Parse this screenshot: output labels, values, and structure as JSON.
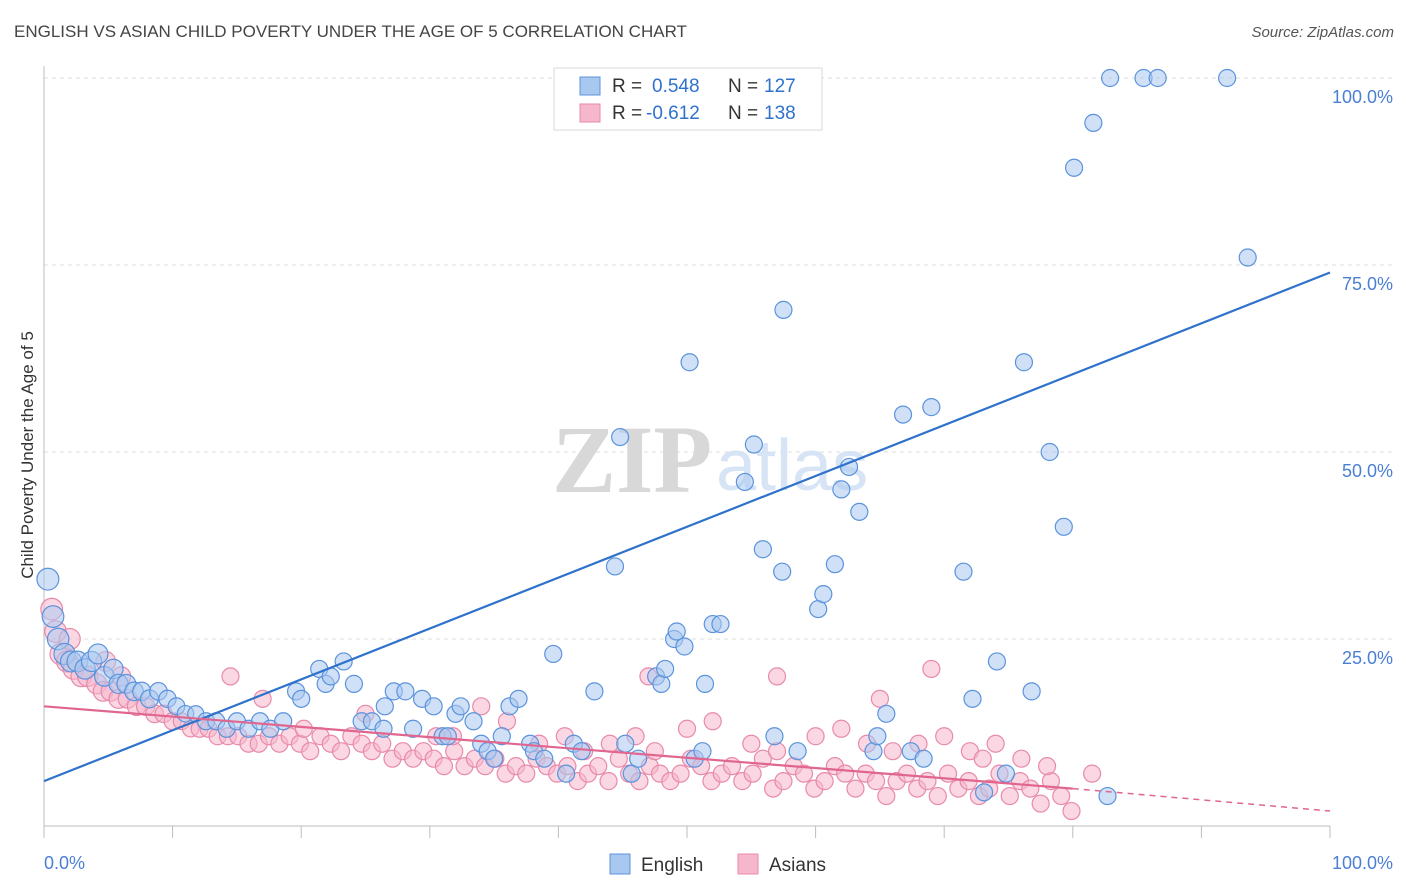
{
  "header": {
    "title": "ENGLISH VS ASIAN CHILD POVERTY UNDER THE AGE OF 5 CORRELATION CHART",
    "source": "Source: ZipAtlas.com"
  },
  "watermark": {
    "zip": "ZIP",
    "atlas": "atlas"
  },
  "stats": {
    "english": {
      "r_label": "R =",
      "r": "0.548",
      "n_label": "N =",
      "n": "127"
    },
    "asians": {
      "r_label": "R =",
      "r": "-0.612",
      "n_label": "N =",
      "n": "138"
    }
  },
  "legend": {
    "english": "English",
    "asians": "Asians"
  },
  "chart_data": {
    "type": "scatter",
    "title": "ENGLISH VS ASIAN CHILD POVERTY UNDER THE AGE OF 5 CORRELATION CHART",
    "ylabel": "Child Poverty Under the Age of 5",
    "xlabel": "",
    "xlim": [
      0,
      100
    ],
    "ylim": [
      0,
      100
    ],
    "x_tick_labels": [
      "0.0%",
      "100.0%"
    ],
    "y_tick_labels": [
      "25.0%",
      "50.0%",
      "75.0%",
      "100.0%"
    ],
    "y_ticks": [
      25,
      50,
      75,
      100
    ],
    "grid": true,
    "legend_position": "bottom",
    "colors": {
      "english_fill": "#a9c8f0",
      "english_stroke": "#5b93dc",
      "english_line": "#2f72cc",
      "asians_fill": "#f6b7cc",
      "asians_stroke": "#e88aa9",
      "asians_line": "#e0668f",
      "tick": "#4a7fd4"
    },
    "series": [
      {
        "name": "English",
        "r": 0.548,
        "n": 127,
        "trend": {
          "x": [
            0,
            100
          ],
          "y": [
            6,
            74
          ]
        },
        "points": [
          [
            0.3,
            33
          ],
          [
            0.7,
            28
          ],
          [
            1.1,
            25
          ],
          [
            1.6,
            23
          ],
          [
            2.1,
            22
          ],
          [
            2.6,
            22
          ],
          [
            3.2,
            21
          ],
          [
            3.7,
            22
          ],
          [
            4.2,
            23
          ],
          [
            4.7,
            20
          ],
          [
            5.4,
            21
          ],
          [
            5.8,
            19
          ],
          [
            6.4,
            19
          ],
          [
            7.0,
            18
          ],
          [
            7.6,
            18
          ],
          [
            8.2,
            17
          ],
          [
            8.9,
            18
          ],
          [
            9.6,
            17
          ],
          [
            10.3,
            16
          ],
          [
            11.0,
            15
          ],
          [
            11.8,
            15
          ],
          [
            12.6,
            14
          ],
          [
            13.4,
            14
          ],
          [
            14.2,
            13
          ],
          [
            15.0,
            14
          ],
          [
            15.9,
            13
          ],
          [
            16.8,
            14
          ],
          [
            17.6,
            13
          ],
          [
            18.6,
            14
          ],
          [
            19.6,
            18
          ],
          [
            20.0,
            17
          ],
          [
            21.4,
            21
          ],
          [
            21.9,
            19
          ],
          [
            22.3,
            20
          ],
          [
            23.3,
            22
          ],
          [
            24.1,
            19
          ],
          [
            24.7,
            14
          ],
          [
            25.5,
            14
          ],
          [
            26.4,
            13
          ],
          [
            26.5,
            16
          ],
          [
            27.2,
            18
          ],
          [
            28.1,
            18
          ],
          [
            28.7,
            13
          ],
          [
            29.4,
            17
          ],
          [
            30.3,
            16
          ],
          [
            31.0,
            12
          ],
          [
            31.4,
            12
          ],
          [
            32.0,
            15
          ],
          [
            32.4,
            16
          ],
          [
            33.4,
            14
          ],
          [
            34.0,
            11
          ],
          [
            34.5,
            10
          ],
          [
            35.0,
            9
          ],
          [
            35.6,
            12
          ],
          [
            36.2,
            16
          ],
          [
            36.9,
            17
          ],
          [
            37.8,
            11
          ],
          [
            38.1,
            10
          ],
          [
            38.9,
            9
          ],
          [
            39.6,
            23
          ],
          [
            40.6,
            7
          ],
          [
            41.2,
            11
          ],
          [
            41.8,
            10
          ],
          [
            42.8,
            18
          ],
          [
            44.4,
            34.7
          ],
          [
            44.8,
            52
          ],
          [
            45.2,
            11
          ],
          [
            45.7,
            7
          ],
          [
            46.2,
            9
          ],
          [
            47.6,
            20
          ],
          [
            48.0,
            19
          ],
          [
            48.3,
            21
          ],
          [
            49.0,
            25
          ],
          [
            49.2,
            26
          ],
          [
            49.8,
            24
          ],
          [
            50.2,
            62
          ],
          [
            50.6,
            9
          ],
          [
            51.2,
            10
          ],
          [
            51.4,
            19
          ],
          [
            52.0,
            27
          ],
          [
            52.6,
            27
          ],
          [
            54.5,
            46
          ],
          [
            55.2,
            51
          ],
          [
            55.9,
            37
          ],
          [
            56.8,
            12
          ],
          [
            57.4,
            34
          ],
          [
            57.5,
            69
          ],
          [
            58.6,
            10
          ],
          [
            60.2,
            29
          ],
          [
            60.6,
            31
          ],
          [
            61.5,
            35
          ],
          [
            62.0,
            45
          ],
          [
            62.6,
            48
          ],
          [
            63.4,
            42
          ],
          [
            64.5,
            10
          ],
          [
            64.8,
            12
          ],
          [
            65.5,
            15
          ],
          [
            66.8,
            55
          ],
          [
            67.4,
            10
          ],
          [
            68.4,
            9
          ],
          [
            69.0,
            56
          ],
          [
            71.5,
            34
          ],
          [
            72.2,
            17
          ],
          [
            73.1,
            4.5
          ],
          [
            74.1,
            22
          ],
          [
            74.8,
            7
          ],
          [
            76.2,
            62
          ],
          [
            76.8,
            18
          ],
          [
            78.2,
            50
          ],
          [
            79.3,
            40
          ],
          [
            80.1,
            88
          ],
          [
            81.6,
            94
          ],
          [
            82.7,
            4
          ],
          [
            82.9,
            100
          ],
          [
            85.5,
            100
          ],
          [
            86.6,
            100
          ],
          [
            92.0,
            100
          ],
          [
            93.6,
            76
          ]
        ]
      },
      {
        "name": "Asians",
        "r": -0.612,
        "n": 138,
        "trend": {
          "x": [
            0,
            80
          ],
          "y": [
            16,
            5
          ]
        },
        "trend_dashed": {
          "x": [
            80,
            100
          ],
          "y": [
            5,
            2
          ]
        },
        "points": [
          [
            0.6,
            29
          ],
          [
            0.9,
            26
          ],
          [
            1.3,
            23
          ],
          [
            1.8,
            22
          ],
          [
            2.3,
            21
          ],
          [
            2.9,
            20
          ],
          [
            3.4,
            20
          ],
          [
            4.1,
            19
          ],
          [
            4.6,
            18
          ],
          [
            5.2,
            18
          ],
          [
            5.8,
            17
          ],
          [
            6.5,
            17
          ],
          [
            7.2,
            16
          ],
          [
            7.9,
            16
          ],
          [
            8.6,
            15
          ],
          [
            9.3,
            15
          ],
          [
            10.0,
            14
          ],
          [
            10.7,
            14
          ],
          [
            11.4,
            13
          ],
          [
            12.1,
            13
          ],
          [
            12.8,
            13
          ],
          [
            13.5,
            12
          ],
          [
            14.3,
            12
          ],
          [
            15.1,
            12
          ],
          [
            15.9,
            11
          ],
          [
            16.7,
            11
          ],
          [
            17.5,
            12
          ],
          [
            18.3,
            11
          ],
          [
            19.1,
            12
          ],
          [
            19.9,
            11
          ],
          [
            20.7,
            10
          ],
          [
            21.5,
            12
          ],
          [
            22.3,
            11
          ],
          [
            23.1,
            10
          ],
          [
            23.9,
            12
          ],
          [
            24.7,
            11
          ],
          [
            25.5,
            10
          ],
          [
            26.3,
            11
          ],
          [
            27.1,
            9
          ],
          [
            27.9,
            10
          ],
          [
            28.7,
            9
          ],
          [
            29.5,
            10
          ],
          [
            30.3,
            9
          ],
          [
            31.1,
            8
          ],
          [
            31.9,
            10
          ],
          [
            32.7,
            8
          ],
          [
            33.5,
            9
          ],
          [
            34.3,
            8
          ],
          [
            35.1,
            9
          ],
          [
            35.9,
            7
          ],
          [
            36.7,
            8
          ],
          [
            37.5,
            7
          ],
          [
            38.3,
            9
          ],
          [
            39.1,
            8
          ],
          [
            39.9,
            7
          ],
          [
            40.7,
            8
          ],
          [
            41.5,
            6
          ],
          [
            42.3,
            7
          ],
          [
            43.1,
            8
          ],
          [
            43.9,
            6
          ],
          [
            44.7,
            9
          ],
          [
            45.5,
            7
          ],
          [
            46.3,
            6
          ],
          [
            47.1,
            8
          ],
          [
            47.9,
            7
          ],
          [
            48.7,
            6
          ],
          [
            49.5,
            7
          ],
          [
            50.3,
            9
          ],
          [
            51.1,
            8
          ],
          [
            51.9,
            6
          ],
          [
            52.7,
            7
          ],
          [
            53.5,
            8
          ],
          [
            54.3,
            6
          ],
          [
            55.1,
            7
          ],
          [
            55.9,
            9
          ],
          [
            56.7,
            5
          ],
          [
            57.5,
            6
          ],
          [
            58.3,
            8
          ],
          [
            59.1,
            7
          ],
          [
            59.9,
            5
          ],
          [
            60.7,
            6
          ],
          [
            61.5,
            8
          ],
          [
            62.3,
            7
          ],
          [
            63.1,
            5
          ],
          [
            63.9,
            7
          ],
          [
            64.7,
            6
          ],
          [
            65.5,
            4
          ],
          [
            66.3,
            6
          ],
          [
            67.1,
            7
          ],
          [
            67.9,
            5
          ],
          [
            68.7,
            6
          ],
          [
            69.5,
            4
          ],
          [
            70.3,
            7
          ],
          [
            71.1,
            5
          ],
          [
            71.9,
            6
          ],
          [
            72.7,
            4
          ],
          [
            73.5,
            5
          ],
          [
            74.3,
            7
          ],
          [
            75.1,
            4
          ],
          [
            75.9,
            6
          ],
          [
            76.7,
            5
          ],
          [
            77.5,
            3
          ],
          [
            78.3,
            6
          ],
          [
            79.1,
            4
          ],
          [
            79.9,
            2
          ],
          [
            2.0,
            25
          ],
          [
            4.8,
            22
          ],
          [
            6.0,
            20
          ],
          [
            14.5,
            20
          ],
          [
            20.2,
            13
          ],
          [
            25.0,
            15
          ],
          [
            30.5,
            12
          ],
          [
            31.8,
            12
          ],
          [
            36.0,
            14
          ],
          [
            38.5,
            11
          ],
          [
            40.5,
            12
          ],
          [
            42.0,
            10
          ],
          [
            44.0,
            11
          ],
          [
            46.0,
            12
          ],
          [
            47.5,
            10
          ],
          [
            50.0,
            13
          ],
          [
            52.0,
            14
          ],
          [
            55.0,
            11
          ],
          [
            57.0,
            10
          ],
          [
            60.0,
            12
          ],
          [
            62.0,
            13
          ],
          [
            64.0,
            11
          ],
          [
            66.0,
            10
          ],
          [
            68.0,
            11
          ],
          [
            70.0,
            12
          ],
          [
            72.0,
            10
          ],
          [
            73.0,
            9
          ],
          [
            74.0,
            11
          ],
          [
            76.0,
            9
          ],
          [
            78.0,
            8
          ],
          [
            17.0,
            17
          ],
          [
            34.0,
            16
          ],
          [
            47.0,
            20
          ],
          [
            57.0,
            20
          ],
          [
            65.0,
            17
          ],
          [
            69.0,
            21
          ],
          [
            81.5,
            7
          ]
        ]
      }
    ]
  }
}
